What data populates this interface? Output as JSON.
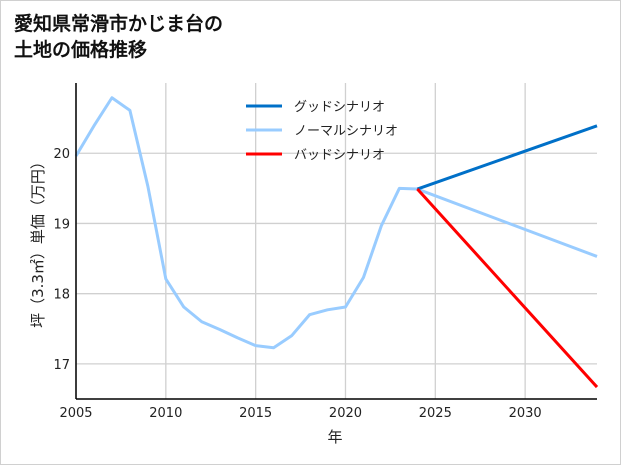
{
  "chart_data": {
    "type": "line",
    "title_lines": [
      "愛知県常滑市かじま台の",
      "土地の価格推移"
    ],
    "xlabel": "年",
    "ylabel": "坪（3.3㎡）単価（万円）",
    "xlim": [
      2005,
      2034
    ],
    "ylim": [
      16.5,
      21
    ],
    "xticks": [
      2005,
      2010,
      2015,
      2020,
      2025,
      2030
    ],
    "yticks": [
      17,
      18,
      19,
      20
    ],
    "grid": true,
    "legend_position": "top-center",
    "series": [
      {
        "name": "グッドシナリオ",
        "color": "#0070C8",
        "x": [
          2024,
          2034
        ],
        "y": [
          19.49,
          20.39
        ]
      },
      {
        "name": "ノーマルシナリオ",
        "color": "#99CCFF",
        "x": [
          2005,
          2006,
          2007,
          2008,
          2009,
          2010,
          2011,
          2012,
          2013,
          2014,
          2015,
          2016,
          2017,
          2018,
          2019,
          2020,
          2021,
          2022,
          2023,
          2024,
          2034
        ],
        "y": [
          19.96,
          20.39,
          20.79,
          20.61,
          19.53,
          18.21,
          17.81,
          17.6,
          17.49,
          17.37,
          17.26,
          17.23,
          17.4,
          17.7,
          17.77,
          17.81,
          18.23,
          18.97,
          19.5,
          19.49,
          18.53
        ]
      },
      {
        "name": "バッドシナリオ",
        "color": "#FF0000",
        "x": [
          2024,
          2034
        ],
        "y": [
          19.49,
          16.67
        ]
      }
    ]
  }
}
